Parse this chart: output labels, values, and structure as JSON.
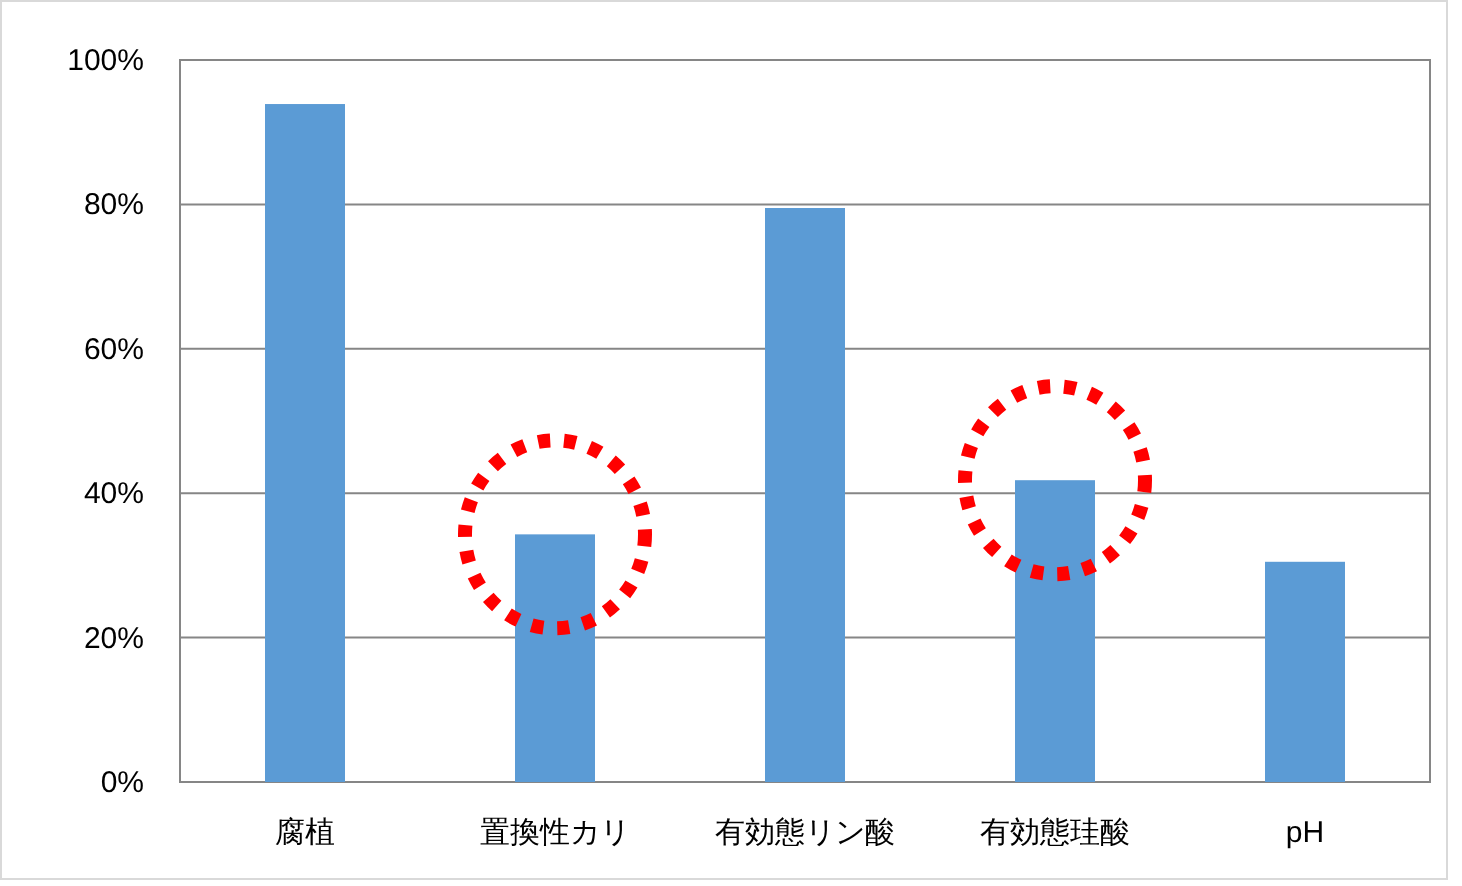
{
  "chart_data": {
    "type": "bar",
    "categories": [
      "腐植",
      "置換性カリ",
      "有効態リン酸",
      "有効態珪酸",
      "pH"
    ],
    "values": [
      93.9,
      34.3,
      79.5,
      41.8,
      30.5
    ],
    "color": "#5b9bd5",
    "ylim": [
      0,
      100
    ],
    "yticks": [
      {
        "value": 0,
        "label": "0%"
      },
      {
        "value": 20,
        "label": "20%"
      },
      {
        "value": 40,
        "label": "40%"
      },
      {
        "value": 60,
        "label": "60%"
      },
      {
        "value": 80,
        "label": "80%"
      },
      {
        "value": 100,
        "label": "100%"
      }
    ],
    "grid": "y"
  }
}
